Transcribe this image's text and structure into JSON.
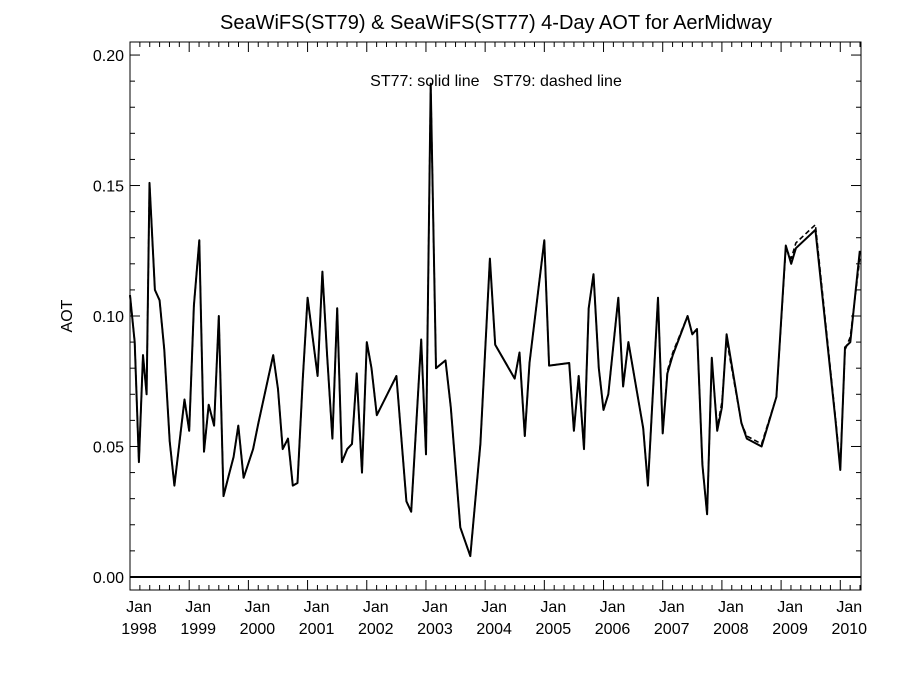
{
  "chart_data": {
    "type": "line",
    "title": "SeaWiFS(ST79) & SeaWiFS(ST77) 4-Day AOT for AerMidway",
    "annotation": "ST77: solid line   ST79: dashed line",
    "xlabel": "",
    "ylabel": "AOT",
    "xlim": [
      1998.0,
      2010.35
    ],
    "ylim": [
      -0.005,
      0.205
    ],
    "grid": false,
    "y_ticks": [
      0.0,
      0.05,
      0.1,
      0.15,
      0.2
    ],
    "y_tick_labels": [
      "0.00",
      "0.05",
      "0.10",
      "0.15",
      "0.20"
    ],
    "x_tick_labels": [
      {
        "x": 1998,
        "month": "Jan",
        "year": "1998"
      },
      {
        "x": 1999,
        "month": "Jan",
        "year": "1999"
      },
      {
        "x": 2000,
        "month": "Jan",
        "year": "2000"
      },
      {
        "x": 2001,
        "month": "Jan",
        "year": "2001"
      },
      {
        "x": 2002,
        "month": "Jan",
        "year": "2002"
      },
      {
        "x": 2003,
        "month": "Jan",
        "year": "2003"
      },
      {
        "x": 2004,
        "month": "Jan",
        "year": "2004"
      },
      {
        "x": 2005,
        "month": "Jan",
        "year": "2005"
      },
      {
        "x": 2006,
        "month": "Jan",
        "year": "2006"
      },
      {
        "x": 2007,
        "month": "Jan",
        "year": "2007"
      },
      {
        "x": 2008,
        "month": "Jan",
        "year": "2008"
      },
      {
        "x": 2009,
        "month": "Jan",
        "year": "2009"
      },
      {
        "x": 2010,
        "month": "Jan",
        "year": "2010"
      }
    ],
    "reference_line_y": 0.0,
    "series": [
      {
        "style": "solid",
        "x": [
          1998.0,
          1998.08,
          1998.15,
          1998.22,
          1998.28,
          1998.33,
          1998.42,
          1998.5,
          1998.58,
          1998.67,
          1998.75,
          1998.92,
          1999.0,
          1999.08,
          1999.17,
          1999.25,
          1999.33,
          1999.42,
          1999.5,
          1999.58,
          1999.67,
          1999.75,
          1999.83,
          1999.92,
          2000.08,
          2000.17,
          2000.42,
          2000.5,
          2000.58,
          2000.67,
          2000.75,
          2000.83,
          2000.92,
          2001.0,
          2001.17,
          2001.25,
          2001.33,
          2001.42,
          2001.5,
          2001.58,
          2001.67,
          2001.75,
          2001.83,
          2001.92,
          2002.0,
          2002.08,
          2002.17,
          2002.5,
          2002.67,
          2002.75,
          2002.92,
          2003.0,
          2003.08,
          2003.17,
          2003.33,
          2003.42,
          2003.58,
          2003.75,
          2003.92,
          2004.08,
          2004.17,
          2004.5,
          2004.58,
          2004.67,
          2004.75,
          2005.0,
          2005.08,
          2005.42,
          2005.5,
          2005.58,
          2005.67,
          2005.75,
          2005.83,
          2005.92,
          2006.0,
          2006.08,
          2006.25,
          2006.33,
          2006.42,
          2006.67,
          2006.75,
          2006.92,
          2007.0,
          2007.08,
          2007.17,
          2007.42,
          2007.5,
          2007.58,
          2007.67,
          2007.75,
          2007.83,
          2007.92,
          2008.0,
          2008.08,
          2008.33,
          2008.42,
          2008.67,
          2008.92,
          2009.08,
          2009.17,
          2009.25,
          2009.58,
          2009.92,
          2010.0,
          2010.08,
          2010.17,
          2010.33
        ],
        "values": [
          0.108,
          0.09,
          0.044,
          0.085,
          0.07,
          0.151,
          0.11,
          0.106,
          0.087,
          0.052,
          0.035,
          0.068,
          0.056,
          0.104,
          0.129,
          0.048,
          0.066,
          0.058,
          0.1,
          0.031,
          0.039,
          0.046,
          0.058,
          0.038,
          0.049,
          0.059,
          0.085,
          0.072,
          0.049,
          0.053,
          0.035,
          0.036,
          0.076,
          0.107,
          0.077,
          0.117,
          0.085,
          0.053,
          0.103,
          0.044,
          0.049,
          0.051,
          0.078,
          0.04,
          0.09,
          0.08,
          0.062,
          0.077,
          0.029,
          0.025,
          0.091,
          0.047,
          0.189,
          0.08,
          0.083,
          0.065,
          0.019,
          0.008,
          0.051,
          0.122,
          0.089,
          0.076,
          0.086,
          0.054,
          0.082,
          0.129,
          0.081,
          0.082,
          0.056,
          0.077,
          0.049,
          0.103,
          0.116,
          0.08,
          0.064,
          0.07,
          0.107,
          0.073,
          0.09,
          0.057,
          0.035,
          0.107,
          0.055,
          0.078,
          0.085,
          0.1,
          0.093,
          0.095,
          0.043,
          0.024,
          0.084,
          0.056,
          0.065,
          0.093,
          0.059,
          0.053,
          0.05,
          0.069,
          0.127,
          0.12,
          0.126,
          0.133,
          0.06,
          0.041,
          0.088,
          0.09,
          0.125
        ]
      },
      {
        "style": "dashed",
        "x": [
          1998.0,
          1998.08,
          1998.15,
          1998.22,
          1998.28,
          1998.33,
          1998.42,
          1998.5,
          1998.58,
          1998.67,
          1998.75,
          1998.92,
          1999.0,
          1999.08,
          1999.17,
          1999.25,
          1999.33,
          1999.42,
          1999.5,
          1999.58,
          1999.67,
          1999.75,
          1999.83,
          1999.92,
          2000.08,
          2000.17,
          2000.42,
          2000.5,
          2000.58,
          2000.67,
          2000.75,
          2000.83,
          2000.92,
          2001.0,
          2001.17,
          2001.25,
          2001.33,
          2001.42,
          2001.5,
          2001.58,
          2001.67,
          2001.75,
          2001.83,
          2001.92,
          2002.0,
          2002.08,
          2002.17,
          2002.5,
          2002.67,
          2002.75,
          2002.92,
          2003.0,
          2003.08,
          2003.17,
          2003.33,
          2003.42,
          2003.58,
          2003.75,
          2003.92,
          2004.08,
          2004.17,
          2004.5,
          2004.58,
          2004.67,
          2004.75,
          2005.0,
          2005.08,
          2005.42,
          2005.5,
          2005.58,
          2005.67,
          2005.75,
          2005.83,
          2005.92,
          2006.0,
          2006.08,
          2006.25,
          2006.33,
          2006.42,
          2006.67,
          2006.75,
          2006.92,
          2007.0,
          2007.08,
          2007.17,
          2007.42,
          2007.5,
          2007.58,
          2007.67,
          2007.75,
          2007.83,
          2007.92,
          2008.0,
          2008.08,
          2008.33,
          2008.42,
          2008.67,
          2008.92,
          2009.08,
          2009.17,
          2009.25,
          2009.58,
          2009.92,
          2010.0,
          2010.08,
          2010.17,
          2010.33
        ],
        "values": [
          0.108,
          0.09,
          0.044,
          0.085,
          0.07,
          0.151,
          0.11,
          0.106,
          0.087,
          0.052,
          0.035,
          0.068,
          0.056,
          0.104,
          0.129,
          0.048,
          0.066,
          0.058,
          0.1,
          0.031,
          0.039,
          0.046,
          0.058,
          0.038,
          0.049,
          0.059,
          0.085,
          0.072,
          0.049,
          0.053,
          0.035,
          0.036,
          0.076,
          0.107,
          0.077,
          0.117,
          0.085,
          0.053,
          0.103,
          0.044,
          0.049,
          0.051,
          0.078,
          0.04,
          0.09,
          0.08,
          0.062,
          0.077,
          0.029,
          0.025,
          0.091,
          0.047,
          0.189,
          0.08,
          0.083,
          0.065,
          0.019,
          0.008,
          0.051,
          0.122,
          0.089,
          0.076,
          0.086,
          0.054,
          0.082,
          0.129,
          0.081,
          0.082,
          0.056,
          0.077,
          0.049,
          0.103,
          0.116,
          0.08,
          0.064,
          0.07,
          0.107,
          0.073,
          0.09,
          0.057,
          0.035,
          0.107,
          0.055,
          0.079,
          0.086,
          0.1,
          0.093,
          0.095,
          0.043,
          0.024,
          0.083,
          0.057,
          0.067,
          0.091,
          0.059,
          0.054,
          0.051,
          0.069,
          0.126,
          0.122,
          0.128,
          0.135,
          0.061,
          0.042,
          0.087,
          0.092,
          0.122
        ]
      }
    ]
  }
}
